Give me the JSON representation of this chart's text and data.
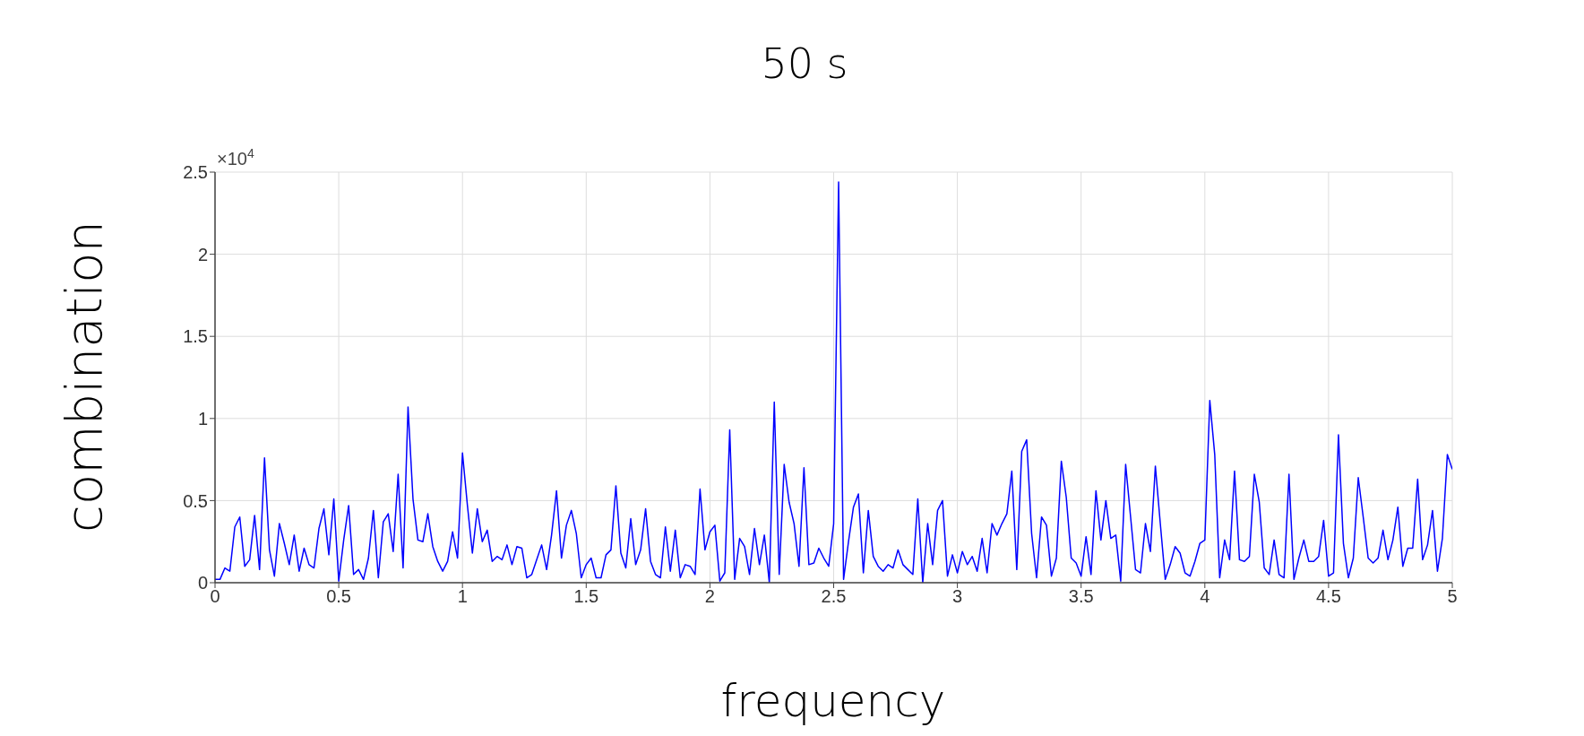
{
  "chart_data": {
    "type": "line",
    "title": "50 s",
    "xlabel": "frequency",
    "ylabel": "combination",
    "annotations": [
      "×10$^{4}$"
    ],
    "x": [
      0,
      0.02,
      0.04,
      0.06,
      0.08,
      0.1,
      0.12,
      0.14,
      0.16,
      0.18,
      0.2,
      0.22,
      0.24,
      0.26,
      0.28,
      0.3,
      0.32,
      0.34,
      0.36,
      0.38,
      0.4,
      0.42,
      0.44,
      0.46,
      0.48,
      0.5,
      0.52,
      0.54,
      0.56,
      0.58,
      0.6,
      0.62,
      0.64,
      0.66,
      0.68,
      0.7,
      0.72,
      0.74,
      0.76,
      0.78,
      0.8,
      0.82,
      0.84,
      0.86,
      0.88,
      0.9,
      0.92,
      0.94,
      0.96,
      0.98,
      1,
      1.02,
      1.04,
      1.06,
      1.08,
      1.1,
      1.12,
      1.14,
      1.16,
      1.18,
      1.2,
      1.22,
      1.24,
      1.26,
      1.28,
      1.3,
      1.32,
      1.34,
      1.36,
      1.38,
      1.4,
      1.42,
      1.44,
      1.46,
      1.48,
      1.5,
      1.52,
      1.54,
      1.56,
      1.58,
      1.6,
      1.62,
      1.64,
      1.66,
      1.68,
      1.7,
      1.72,
      1.74,
      1.76,
      1.78,
      1.8,
      1.82,
      1.84,
      1.86,
      1.88,
      1.9,
      1.92,
      1.94,
      1.96,
      1.98,
      2,
      2.02,
      2.04,
      2.06,
      2.08,
      2.1,
      2.12,
      2.14,
      2.16,
      2.18,
      2.2,
      2.22,
      2.24,
      2.26,
      2.28,
      2.3,
      2.32,
      2.34,
      2.36,
      2.38,
      2.4,
      2.42,
      2.44,
      2.46,
      2.48,
      2.5,
      2.52,
      2.54,
      2.56,
      2.58,
      2.6,
      2.62,
      2.64,
      2.66,
      2.68,
      2.7,
      2.72,
      2.74,
      2.76,
      2.78,
      2.8,
      2.82,
      2.84,
      2.86,
      2.88,
      2.9,
      2.92,
      2.94,
      2.96,
      2.98,
      3,
      3.02,
      3.04,
      3.06,
      3.08,
      3.1,
      3.12,
      3.14,
      3.16,
      3.18,
      3.2,
      3.22,
      3.24,
      3.26,
      3.28,
      3.3,
      3.32,
      3.34,
      3.36,
      3.38,
      3.4,
      3.42,
      3.44,
      3.46,
      3.48,
      3.5,
      3.52,
      3.54,
      3.56,
      3.58,
      3.6,
      3.62,
      3.64,
      3.66,
      3.68,
      3.7,
      3.72,
      3.74,
      3.76,
      3.78,
      3.8,
      3.82,
      3.84,
      3.86,
      3.88,
      3.9,
      3.92,
      3.94,
      3.96,
      3.98,
      4,
      4.02,
      4.04,
      4.06,
      4.08,
      4.1,
      4.12,
      4.14,
      4.16,
      4.18,
      4.2,
      4.22,
      4.24,
      4.26,
      4.28,
      4.3,
      4.32,
      4.34,
      4.36,
      4.38,
      4.4,
      4.42,
      4.44,
      4.46,
      4.48,
      4.5,
      4.52,
      4.54,
      4.56,
      4.58,
      4.6,
      4.62,
      4.64,
      4.66,
      4.68,
      4.7,
      4.72,
      4.74,
      4.76,
      4.78,
      4.8,
      4.82,
      4.84,
      4.86,
      4.88,
      4.9,
      4.92,
      4.94,
      4.96,
      4.98,
      5
    ],
    "series": [
      {
        "color": "#0000ff",
        "values": [
          0.02,
          0.02,
          0.09,
          0.07,
          0.34,
          0.4,
          0.1,
          0.14,
          0.41,
          0.08,
          0.76,
          0.2,
          0.04,
          0.36,
          0.24,
          0.11,
          0.29,
          0.07,
          0.21,
          0.11,
          0.09,
          0.33,
          0.45,
          0.17,
          0.51,
          0.01,
          0.26,
          0.47,
          0.05,
          0.08,
          0.02,
          0.15,
          0.44,
          0.03,
          0.37,
          0.42,
          0.19,
          0.66,
          0.09,
          1.07,
          0.51,
          0.26,
          0.25,
          0.42,
          0.22,
          0.13,
          0.07,
          0.13,
          0.31,
          0.15,
          0.79,
          0.47,
          0.18,
          0.45,
          0.25,
          0.32,
          0.13,
          0.16,
          0.14,
          0.23,
          0.11,
          0.22,
          0.21,
          0.03,
          0.05,
          0.14,
          0.23,
          0.08,
          0.29,
          0.56,
          0.15,
          0.35,
          0.44,
          0.3,
          0.03,
          0.11,
          0.15,
          0.03,
          0.03,
          0.17,
          0.2,
          0.59,
          0.18,
          0.09,
          0.39,
          0.11,
          0.2,
          0.45,
          0.13,
          0.05,
          0.03,
          0.34,
          0.07,
          0.32,
          0.03,
          0.11,
          0.1,
          0.05,
          0.57,
          0.2,
          0.31,
          0.35,
          0.01,
          0.06,
          0.93,
          0.02,
          0.27,
          0.22,
          0.05,
          0.33,
          0.11,
          0.29,
          0.0,
          1.1,
          0.05,
          0.72,
          0.49,
          0.36,
          0.1,
          0.7,
          0.11,
          0.12,
          0.21,
          0.15,
          0.1,
          0.36,
          2.44,
          0.02,
          0.25,
          0.46,
          0.54,
          0.06,
          0.44,
          0.16,
          0.1,
          0.07,
          0.11,
          0.09,
          0.2,
          0.11,
          0.08,
          0.05,
          0.51,
          0.0,
          0.36,
          0.11,
          0.44,
          0.5,
          0.04,
          0.17,
          0.06,
          0.19,
          0.11,
          0.16,
          0.07,
          0.27,
          0.06,
          0.36,
          0.29,
          0.36,
          0.42,
          0.68,
          0.08,
          0.8,
          0.87,
          0.3,
          0.03,
          0.4,
          0.35,
          0.04,
          0.15,
          0.74,
          0.52,
          0.15,
          0.12,
          0.04,
          0.28,
          0.05,
          0.56,
          0.26,
          0.5,
          0.27,
          0.29,
          0.01,
          0.72,
          0.4,
          0.08,
          0.06,
          0.36,
          0.19,
          0.71,
          0.36,
          0.02,
          0.11,
          0.22,
          0.18,
          0.06,
          0.04,
          0.13,
          0.24,
          0.26,
          1.11,
          0.78,
          0.03,
          0.26,
          0.14,
          0.68,
          0.14,
          0.13,
          0.16,
          0.66,
          0.49,
          0.09,
          0.05,
          0.26,
          0.05,
          0.03,
          0.66,
          0.02,
          0.15,
          0.26,
          0.13,
          0.13,
          0.16,
          0.38,
          0.04,
          0.06,
          0.9,
          0.24,
          0.03,
          0.15,
          0.64,
          0.4,
          0.15,
          0.12,
          0.15,
          0.32,
          0.14,
          0.26,
          0.46,
          0.1,
          0.21,
          0.21,
          0.63,
          0.14,
          0.23,
          0.44,
          0.07,
          0.27,
          0.78,
          0.69
        ]
      }
    ],
    "xlim": [
      0,
      5
    ],
    "xticks": [
      0,
      0.5,
      1,
      1.5,
      2,
      2.5,
      3,
      3.5,
      4,
      4.5,
      5
    ],
    "ylim": [
      0,
      2.5
    ],
    "yticks": [
      0,
      0.5,
      1,
      1.5,
      2,
      2.5
    ],
    "grid": true
  }
}
